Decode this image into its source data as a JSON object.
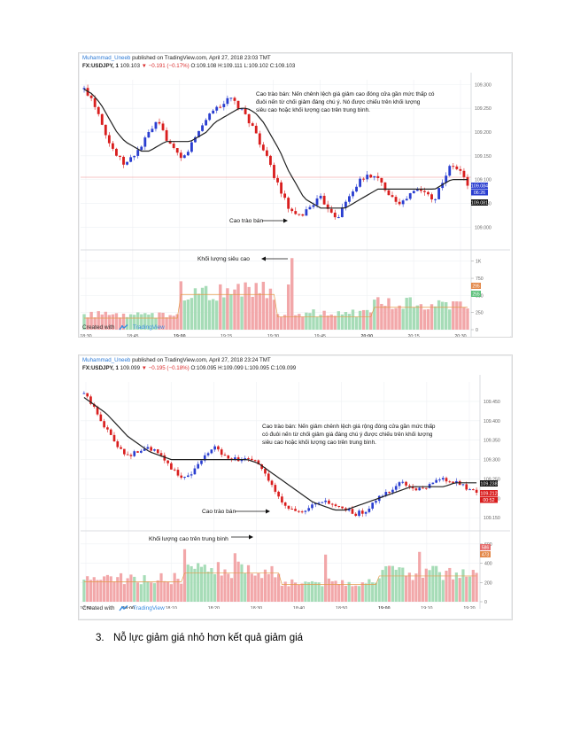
{
  "page": {
    "bullet_number": "3.",
    "bullet_text": "Nỗ lực giảm giá nhỏ hơn kết quả giảm giá"
  },
  "colors": {
    "up": "#2a3ed0",
    "down": "#d91e1e",
    "ma": "#222222",
    "vol_up": "#a6dcb7",
    "vol_down": "#f2a7a9",
    "grid": "#eef0f3",
    "brand": "#3a8de0"
  },
  "charts": [
    {
      "author": "Muhammad_Uneeb",
      "published": "published on TradingView.com, April 27, 2018 23:03 TMT",
      "symbol": "FX:USDJPY, 1",
      "last": "109.103",
      "change": "▼ −0.191 (−0.17%)",
      "o": "O:109.108",
      "h": "H:109.111",
      "l": "L:109.102",
      "c": "C:109.103",
      "annotation_main": [
        "Cao trào bán: Nến chênh lệch giá giảm cao đóng cửa gần mức thấp có",
        "đuôi nến từ chối giảm đáng chú ý. Nó được chiếu trên khối lượng",
        "siêu cao hoặc khối lượng cao trên trung bình."
      ],
      "annotation_arrow": "Cao trào bán",
      "annotation_volume": "Khối lượng siêu cao",
      "price_badges": [
        "109.084",
        "06:26",
        "109.081"
      ],
      "vol_badges": [
        "295",
        "255"
      ],
      "footer_created": "Created with",
      "footer_brand": "TradingView"
    },
    {
      "author": "Muhammad_Uneeb",
      "published": "published on TradingView.com, April 27, 2018 23:24 TMT",
      "symbol": "FX:USDJPY, 1",
      "last": "109.099",
      "change": "▼ −0.195 (−0.18%)",
      "o": "O:109.095",
      "h": "H:109.099",
      "l": "L:109.095",
      "c": "C:109.099",
      "annotation_main": [
        "Cao trào bán: Nến giảm chênh lệch giá rộng đóng cửa gần mức thấp",
        "có đuôi nến từ chối giảm giá đáng chú ý được chiếu trên khối lượng",
        "siêu cao hoặc khối lượng cao trên trung bình."
      ],
      "annotation_arrow": "Cao trào bán",
      "annotation_volume": "Khối lượng cao trên trung bình",
      "price_badges": [
        "109.238",
        "109.212",
        "00:52"
      ],
      "vol_badges": [
        "586",
        "473"
      ],
      "footer_created": "Created with",
      "footer_brand": "TradingView"
    }
  ],
  "chart_data": [
    {
      "type": "candlestick",
      "title": "FX:USDJPY, 1",
      "x_ticks": [
        "18:30",
        "18:45",
        "19:00",
        "19:15",
        "19:30",
        "19:45",
        "20:00",
        "20:15",
        "20:30"
      ],
      "y_ticks": [
        "109.300",
        "109.250",
        "109.200",
        "109.150",
        "109.100",
        "109.050",
        "109.000"
      ],
      "ylim": [
        108.98,
        109.31
      ],
      "vol_ticks": [
        "1K",
        "750",
        "500",
        "250",
        "0"
      ],
      "vol_lim": [
        0,
        1100
      ],
      "close_path": [
        109.29,
        109.27,
        109.23,
        109.18,
        109.15,
        109.13,
        109.15,
        109.17,
        109.2,
        109.22,
        109.19,
        109.16,
        109.14,
        109.17,
        109.2,
        109.23,
        109.25,
        109.26,
        109.27,
        109.25,
        109.23,
        109.2,
        109.16,
        109.12,
        109.08,
        109.04,
        109.02,
        109.03,
        109.05,
        109.06,
        109.04,
        109.02,
        109.05,
        109.08,
        109.1,
        109.11,
        109.1,
        109.08,
        109.06,
        109.05,
        109.07,
        109.08,
        109.07,
        109.06,
        109.1,
        109.13,
        109.12,
        109.09
      ],
      "ma_path": [
        109.29,
        109.28,
        109.26,
        109.23,
        109.2,
        109.18,
        109.17,
        109.16,
        109.16,
        109.17,
        109.18,
        109.18,
        109.18,
        109.18,
        109.19,
        109.2,
        109.22,
        109.23,
        109.24,
        109.25,
        109.25,
        109.24,
        109.22,
        109.19,
        109.16,
        109.12,
        109.09,
        109.06,
        109.05,
        109.04,
        109.04,
        109.04,
        109.04,
        109.05,
        109.06,
        109.07,
        109.08,
        109.08,
        109.08,
        109.08,
        109.08,
        109.08,
        109.08,
        109.08,
        109.09,
        109.1,
        109.1,
        109.1
      ],
      "volume_levels": [
        0.18,
        0.55,
        0.2,
        0.35
      ]
    },
    {
      "type": "candlestick",
      "title": "FX:USDJPY, 1",
      "x_ticks": [
        "17:50",
        "18:00",
        "18:10",
        "18:20",
        "18:30",
        "18:40",
        "18:50",
        "19:00",
        "19:10",
        "19:20"
      ],
      "y_ticks": [
        "109.450",
        "109.400",
        "109.350",
        "109.300",
        "109.250",
        "109.200",
        "109.150"
      ],
      "ylim": [
        109.13,
        109.5
      ],
      "vol_ticks": [
        "600",
        "400",
        "200",
        "0"
      ],
      "vol_lim": [
        0,
        700
      ],
      "close_path": [
        109.47,
        109.43,
        109.38,
        109.34,
        109.31,
        109.32,
        109.33,
        109.31,
        109.28,
        109.25,
        109.27,
        109.31,
        109.33,
        109.31,
        109.3,
        109.3,
        109.29,
        109.24,
        109.2,
        109.17,
        109.16,
        109.18,
        109.19,
        109.18,
        109.17,
        109.16,
        109.17,
        109.2,
        109.22,
        109.24,
        109.23,
        109.22,
        109.24,
        109.25,
        109.24,
        109.23,
        109.21
      ],
      "ma_path": [
        109.46,
        109.44,
        109.42,
        109.39,
        109.36,
        109.34,
        109.32,
        109.31,
        109.3,
        109.3,
        109.3,
        109.3,
        109.3,
        109.3,
        109.3,
        109.3,
        109.29,
        109.27,
        109.25,
        109.23,
        109.21,
        109.19,
        109.18,
        109.17,
        109.17,
        109.18,
        109.19,
        109.2,
        109.21,
        109.22,
        109.23,
        109.23,
        109.23,
        109.23,
        109.24,
        109.24,
        109.24
      ],
      "volume_levels": [
        0.35,
        0.5,
        0.3,
        0.45
      ]
    }
  ]
}
